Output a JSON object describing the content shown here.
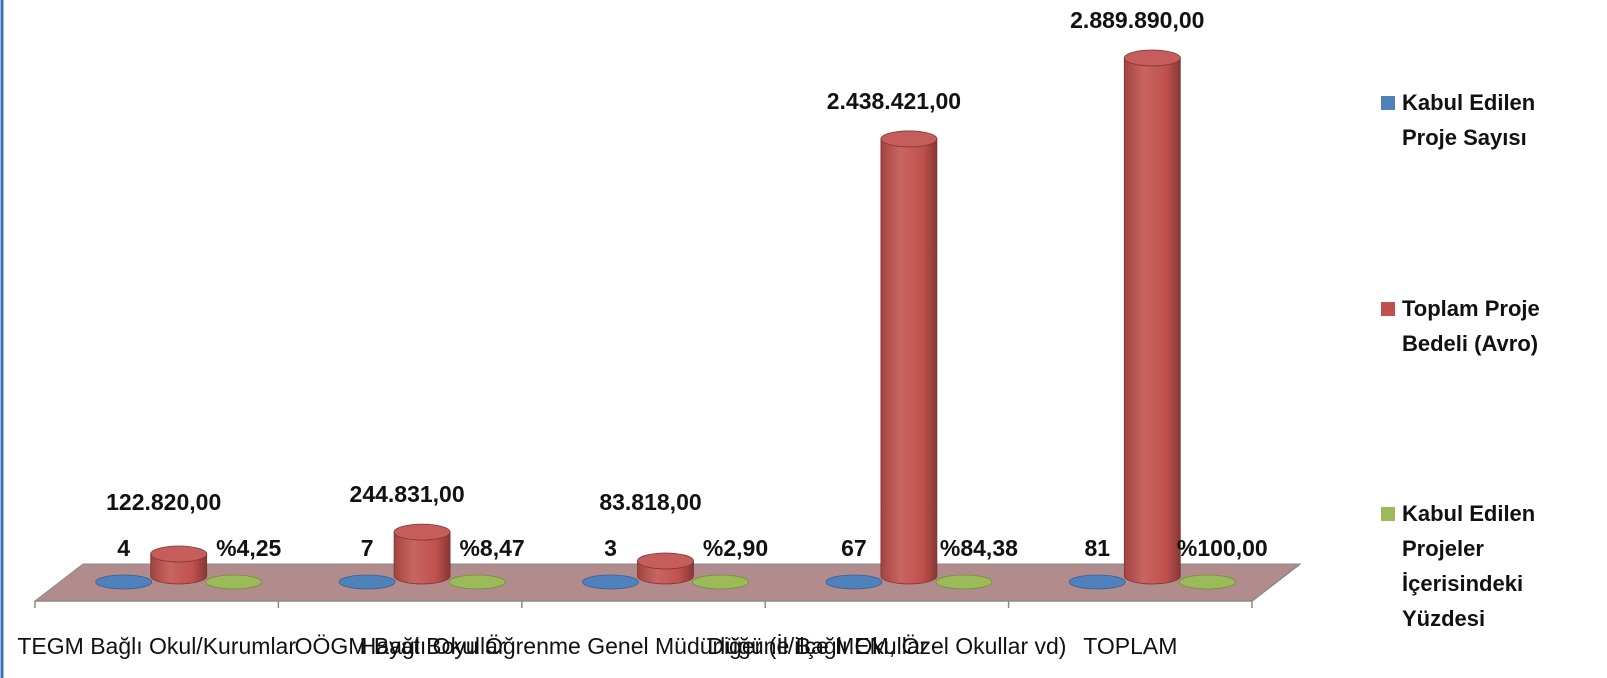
{
  "chart_data": {
    "type": "bar",
    "style": "3d-cylinder",
    "categories": [
      "TEGM Bağlı Okul/Kurumlar",
      "OÖGM Bağlı Okullar",
      "Hayat Boyu Öğrenme Genel Müdürlüğüne Bağlı Okullar",
      "Diğer (İl/ilçe MEM, Özel Okullar vd)",
      "TOPLAM"
    ],
    "series": [
      {
        "name": "Kabul Edilen Proje Sayısı",
        "color": "#4F81BD",
        "values": [
          4,
          7,
          3,
          67,
          81
        ],
        "labels": [
          "4",
          "7",
          "3",
          "67",
          "81"
        ]
      },
      {
        "name": "Toplam Proje Bedeli (Avro)",
        "color": "#C0504D",
        "values": [
          122820,
          244831,
          83818,
          2438421,
          2889890
        ],
        "labels": [
          "122.820,00",
          "244.831,00",
          "83.818,00",
          "2.438.421,00",
          "2.889.890,00"
        ]
      },
      {
        "name": "Kabul Edilen Projeler İçerisindeki Yüzdesi",
        "color": "#9BBB59",
        "values": [
          4.25,
          8.47,
          2.9,
          84.38,
          100
        ],
        "labels": [
          "%4,25",
          "%8,47",
          "%2,90",
          "%84,38",
          "%100,00"
        ]
      }
    ],
    "legend": {
      "position": "right",
      "entries": [
        [
          "Kabul Edilen",
          "Proje Sayısı"
        ],
        [
          "Toplam Proje",
          "Bedeli (Avro)"
        ],
        [
          "Kabul Edilen",
          "Projeler",
          "İçerisindeki",
          "Yüzdesi"
        ]
      ]
    },
    "floor_color": "#B28C8C",
    "grid": false,
    "title": "",
    "xlabel": "",
    "ylabel": ""
  }
}
